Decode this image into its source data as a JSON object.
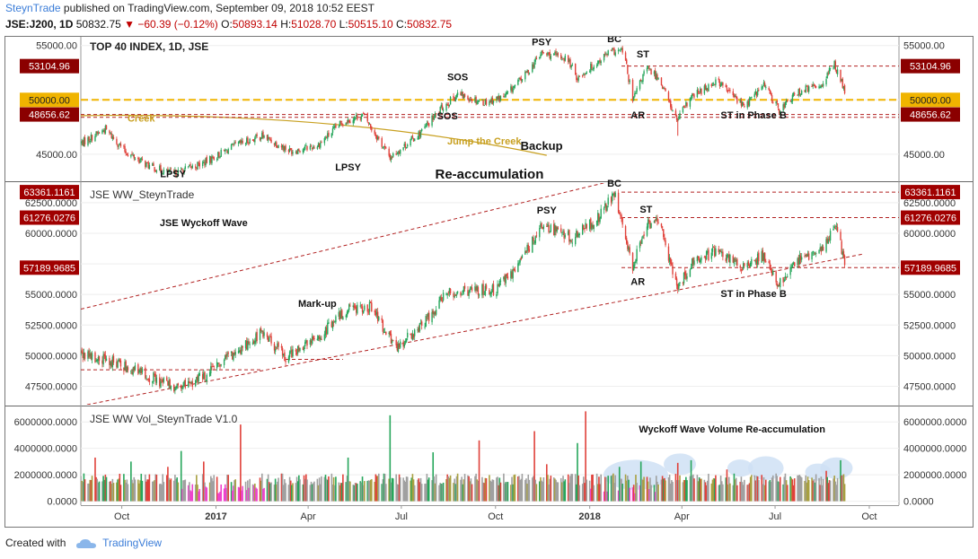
{
  "header": {
    "author": "SteynTrade",
    "published_text": " published on TradingView.com, September 09, 2018 10:52 EEST",
    "symbol": "JSE:J200, 1D",
    "last": "50832.75",
    "change": "−60.39 (−0.12%)",
    "o_label": "O:",
    "o_value": "50893.14",
    "h_label": "H:",
    "h_value": "51028.70",
    "l_label": "L:",
    "l_value": "50515.10",
    "c_label": "C:",
    "c_value": "50832.75"
  },
  "footer": {
    "created_with": "Created with",
    "brand": "TradingView"
  },
  "colors": {
    "up": "#26a65b",
    "down": "#e0413a",
    "dashed": "#b22222",
    "creek": "#c8a020",
    "level50k": "#f0b400",
    "vol_grey": "#a0a0a0",
    "vol_olive": "#a8a040",
    "vol_magenta": "#ee44cc",
    "bubble": "#cfe0f5"
  },
  "chart_data": [
    {
      "type": "candlestick",
      "pane": "price",
      "title": "TOP 40 INDEX, 1D, JSE",
      "subtitle": "Re-accumulation",
      "x_range": [
        "2016-08-22",
        "2018-10-30"
      ],
      "ylim": [
        42600,
        55800
      ],
      "y_ticks": [
        "55000.00",
        "50000.00",
        "45000.00"
      ],
      "price_levels": [
        {
          "label": "53104.96",
          "value": 53104.96,
          "style": "dashed"
        },
        {
          "label": "50000.00",
          "value": 50000.0,
          "style": "dashed-orange"
        },
        {
          "label": "48656.62",
          "value": 48656.62,
          "style": "dashed"
        }
      ],
      "last_label": "50832.75",
      "anchors": [
        [
          "2016-08-22",
          46000
        ],
        [
          "2016-09-15",
          47300
        ],
        [
          "2016-10-05",
          45200
        ],
        [
          "2016-10-28",
          43900
        ],
        [
          "2016-11-20",
          43200
        ],
        [
          "2016-12-20",
          44200
        ],
        [
          "2017-01-20",
          45800
        ],
        [
          "2017-02-15",
          46700
        ],
        [
          "2017-03-15",
          45300
        ],
        [
          "2017-04-10",
          45800
        ],
        [
          "2017-05-05",
          48000
        ],
        [
          "2017-05-25",
          48600
        ],
        [
          "2017-06-20",
          44700
        ],
        [
          "2017-07-20",
          47000
        ],
        [
          "2017-08-10",
          49300
        ],
        [
          "2017-08-25",
          50500
        ],
        [
          "2017-09-20",
          49800
        ],
        [
          "2017-10-10",
          50300
        ],
        [
          "2017-10-30",
          52300
        ],
        [
          "2017-11-15",
          54300
        ],
        [
          "2017-12-10",
          53800
        ],
        [
          "2017-12-20",
          52000
        ],
        [
          "2018-01-05",
          53200
        ],
        [
          "2018-01-20",
          54400
        ],
        [
          "2018-02-03",
          54500
        ],
        [
          "2018-02-12",
          49900
        ],
        [
          "2018-02-25",
          52900
        ],
        [
          "2018-03-10",
          52000
        ],
        [
          "2018-03-27",
          48100
        ],
        [
          "2018-04-10",
          50200
        ],
        [
          "2018-05-05",
          51800
        ],
        [
          "2018-06-01",
          49400
        ],
        [
          "2018-06-20",
          51400
        ],
        [
          "2018-07-05",
          49100
        ],
        [
          "2018-07-25",
          50800
        ],
        [
          "2018-08-15",
          51400
        ],
        [
          "2018-08-28",
          53300
        ],
        [
          "2018-09-07",
          50800
        ]
      ],
      "annotations": [
        {
          "text": "PSY",
          "date": "2017-11-15",
          "value": 55000
        },
        {
          "text": "BC",
          "date": "2018-01-25",
          "value": 55300
        },
        {
          "text": "ST",
          "date": "2018-02-22",
          "value": 53900
        },
        {
          "text": "SOS",
          "date": "2017-08-25",
          "value": 51800
        },
        {
          "text": "SOS",
          "date": "2017-08-15",
          "value": 48200
        },
        {
          "text": "AR",
          "date": "2018-02-17",
          "value": 48300
        },
        {
          "text": "ST in Phase B",
          "date": "2018-06-10",
          "value": 48300
        },
        {
          "text": "Creek",
          "date": "2016-10-20",
          "value": 48000
        },
        {
          "text": "Jump the Creek",
          "date": "2017-09-20",
          "value": 45900
        },
        {
          "text": "Backup",
          "date": "2017-11-15",
          "value": 45400
        },
        {
          "text": "LPSY",
          "date": "2017-05-10",
          "value": 43500
        },
        {
          "text": "LPSY",
          "date": "2016-11-20",
          "value": 42900
        }
      ]
    },
    {
      "type": "candlestick",
      "pane": "wave",
      "title": "JSE WW_SteynTrade",
      "ylim": [
        46000,
        64100
      ],
      "y_ticks": [
        "62500.0000",
        "60000.0000",
        "57500.0000",
        "55000.0000",
        "52500.0000",
        "50000.0000",
        "47500.0000"
      ],
      "price_levels": [
        {
          "label": "63361.1161",
          "value": 63361.1161,
          "style": "dashed"
        },
        {
          "label": "61276.0276",
          "value": 61276.0276,
          "style": "dashed"
        },
        {
          "label": "57189.9685",
          "value": 57189.9685,
          "style": "dashed"
        }
      ],
      "anchors": [
        [
          "2016-08-22",
          50000
        ],
        [
          "2016-09-20",
          49600
        ],
        [
          "2016-10-20",
          48600
        ],
        [
          "2016-11-25",
          47300
        ],
        [
          "2016-12-20",
          48300
        ],
        [
          "2017-01-20",
          50300
        ],
        [
          "2017-02-15",
          51900
        ],
        [
          "2017-03-10",
          49900
        ],
        [
          "2017-04-10",
          51400
        ],
        [
          "2017-05-10",
          53900
        ],
        [
          "2017-06-01",
          54000
        ],
        [
          "2017-06-25",
          50600
        ],
        [
          "2017-07-20",
          52300
        ],
        [
          "2017-08-15",
          55200
        ],
        [
          "2017-09-15",
          55400
        ],
        [
          "2017-10-01",
          55300
        ],
        [
          "2017-10-25",
          57600
        ],
        [
          "2017-11-15",
          60700
        ],
        [
          "2017-12-15",
          59600
        ],
        [
          "2018-01-10",
          61300
        ],
        [
          "2018-01-25",
          63200
        ],
        [
          "2018-02-12",
          57300
        ],
        [
          "2018-02-25",
          60700
        ],
        [
          "2018-03-10",
          60900
        ],
        [
          "2018-03-28",
          55500
        ],
        [
          "2018-04-10",
          57500
        ],
        [
          "2018-05-05",
          58600
        ],
        [
          "2018-06-01",
          57200
        ],
        [
          "2018-06-20",
          58200
        ],
        [
          "2018-07-05",
          55800
        ],
        [
          "2018-07-25",
          57900
        ],
        [
          "2018-08-15",
          58500
        ],
        [
          "2018-08-30",
          61000
        ],
        [
          "2018-09-07",
          57400
        ]
      ],
      "channel": {
        "lower": [
          [
            "2016-08-22",
            45900
          ],
          [
            "2018-09-25",
            58300
          ]
        ],
        "upper": [
          [
            "2016-08-22",
            53800
          ],
          [
            "2018-03-10",
            65200
          ]
        ]
      },
      "annotations": [
        {
          "text": "JSE Wyckoff Wave",
          "date": "2016-12-20",
          "value": 60600
        },
        {
          "text": "Mark-up",
          "date": "2017-04-10",
          "value": 54000
        },
        {
          "text": "PSY",
          "date": "2017-11-20",
          "value": 61600
        },
        {
          "text": "BC",
          "date": "2018-01-25",
          "value": 63800
        },
        {
          "text": "ST",
          "date": "2018-02-25",
          "value": 61700
        },
        {
          "text": "AR",
          "date": "2018-02-17",
          "value": 55800
        },
        {
          "text": "ST in Phase B",
          "date": "2018-06-10",
          "value": 54800
        }
      ]
    },
    {
      "type": "bar",
      "pane": "volume",
      "title": "JSE WW Vol_SteynTrade V1.0",
      "subtitle": "Wyckoff Wave Volume Re-accumulation",
      "ylim": [
        -300000,
        7100000
      ],
      "y_ticks": [
        "6000000.0000",
        "4000000.0000",
        "2000000.0000",
        "0.0000"
      ],
      "x_ticks": [
        "Oct",
        "2017",
        "Apr",
        "Jul",
        "Oct",
        "2018",
        "Apr",
        "Jul",
        "Oct"
      ],
      "spikes": [
        [
          "2016-08-25",
          2100000
        ],
        [
          "2016-09-05",
          3300000
        ],
        [
          "2016-10-10",
          3000000
        ],
        [
          "2016-10-22",
          3000000
        ],
        [
          "2016-11-15",
          2600000
        ],
        [
          "2016-11-28",
          3800000
        ],
        [
          "2016-12-20",
          3000000
        ],
        [
          "2017-01-25",
          5800000
        ],
        [
          "2017-05-10",
          3300000
        ],
        [
          "2017-06-20",
          6500000
        ],
        [
          "2017-08-01",
          3700000
        ],
        [
          "2017-09-15",
          4600000
        ],
        [
          "2017-10-01",
          3500000
        ],
        [
          "2017-11-08",
          5300000
        ],
        [
          "2017-11-20",
          2800000
        ],
        [
          "2017-12-20",
          4400000
        ],
        [
          "2017-12-28",
          6800000
        ],
        [
          "2018-01-30",
          2600000
        ],
        [
          "2018-02-10",
          3800000
        ],
        [
          "2018-02-20",
          3000000
        ],
        [
          "2018-03-18",
          2800000
        ],
        [
          "2018-03-28",
          2900000
        ],
        [
          "2018-04-10",
          3100000
        ],
        [
          "2018-05-15",
          2400000
        ],
        [
          "2018-06-10",
          2500000
        ],
        [
          "2018-07-01",
          3000000
        ],
        [
          "2018-08-20",
          2300000
        ],
        [
          "2018-09-03",
          3100000
        ]
      ],
      "bubbles": [
        [
          "2018-02-15",
          2000000,
          2.0
        ],
        [
          "2018-03-30",
          2800000,
          1.0
        ],
        [
          "2018-05-28",
          2500000,
          0.8
        ],
        [
          "2018-06-22",
          2500000,
          1.1
        ],
        [
          "2018-08-12",
          2200000,
          0.8
        ],
        [
          "2018-08-30",
          2500000,
          1.0
        ]
      ]
    }
  ]
}
